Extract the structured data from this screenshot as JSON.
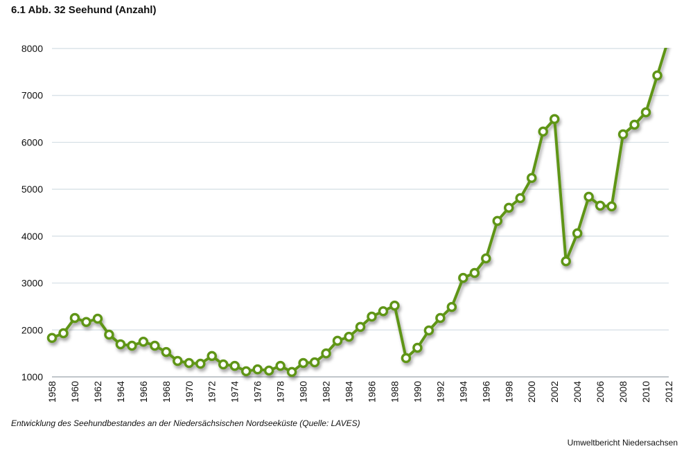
{
  "header": {
    "title": "6.1 Abb. 32 Seehund (Anzahl)"
  },
  "caption": "Entwicklung des Seehundbestandes an der Niedersächsischen Nordseeküste (Quelle: LAVES)",
  "source": "Umweltbericht Niedersachsen",
  "colors": {
    "line": "#5f9519",
    "grid": "#d4dee4",
    "marker_fill": "#ffffff"
  },
  "chart_data": {
    "type": "line",
    "title": "6.1 Abb. 32 Seehund (Anzahl)",
    "xlabel": "",
    "ylabel": "",
    "xlim": [
      1958,
      2012
    ],
    "ylim": [
      1000,
      8000
    ],
    "yticks": [
      "1000",
      "2000",
      "3000",
      "4000",
      "5000",
      "6000",
      "7000",
      "8000"
    ],
    "xticks": [
      "1958",
      "1960",
      "1962",
      "1964",
      "1966",
      "1968",
      "1970",
      "1972",
      "1974",
      "1976",
      "1978",
      "1980",
      "1982",
      "1984",
      "1986",
      "1988",
      "1990",
      "1992",
      "1994",
      "1996",
      "1998",
      "2000",
      "2002",
      "2004",
      "2006",
      "2008",
      "2010",
      "2012"
    ],
    "grid": true,
    "series": [
      {
        "name": "Seehund (Anzahl)",
        "x": [
          1958,
          1959,
          1960,
          1961,
          1962,
          1963,
          1964,
          1965,
          1966,
          1967,
          1968,
          1969,
          1970,
          1971,
          1972,
          1973,
          1974,
          1975,
          1976,
          1977,
          1978,
          1979,
          1980,
          1981,
          1982,
          1983,
          1984,
          1985,
          1986,
          1987,
          1988,
          1989,
          1990,
          1991,
          1992,
          1993,
          1994,
          1995,
          1996,
          1997,
          1998,
          1999,
          2000,
          2001,
          2002,
          2003,
          2004,
          2005,
          2006,
          2007,
          2008,
          2009,
          2010,
          2011,
          2012
        ],
        "values": [
          1830,
          1930,
          2255,
          2170,
          2240,
          1900,
          1695,
          1665,
          1750,
          1665,
          1530,
          1340,
          1295,
          1280,
          1445,
          1265,
          1235,
          1120,
          1160,
          1135,
          1235,
          1105,
          1295,
          1310,
          1500,
          1770,
          1855,
          2065,
          2285,
          2400,
          2520,
          1400,
          1620,
          1990,
          2255,
          2490,
          3110,
          3215,
          3525,
          4325,
          4605,
          4810,
          5240,
          6230,
          6495,
          3465,
          4060,
          4840,
          4650,
          4635,
          6170,
          6375,
          6640,
          7425,
          8220
        ]
      }
    ]
  }
}
